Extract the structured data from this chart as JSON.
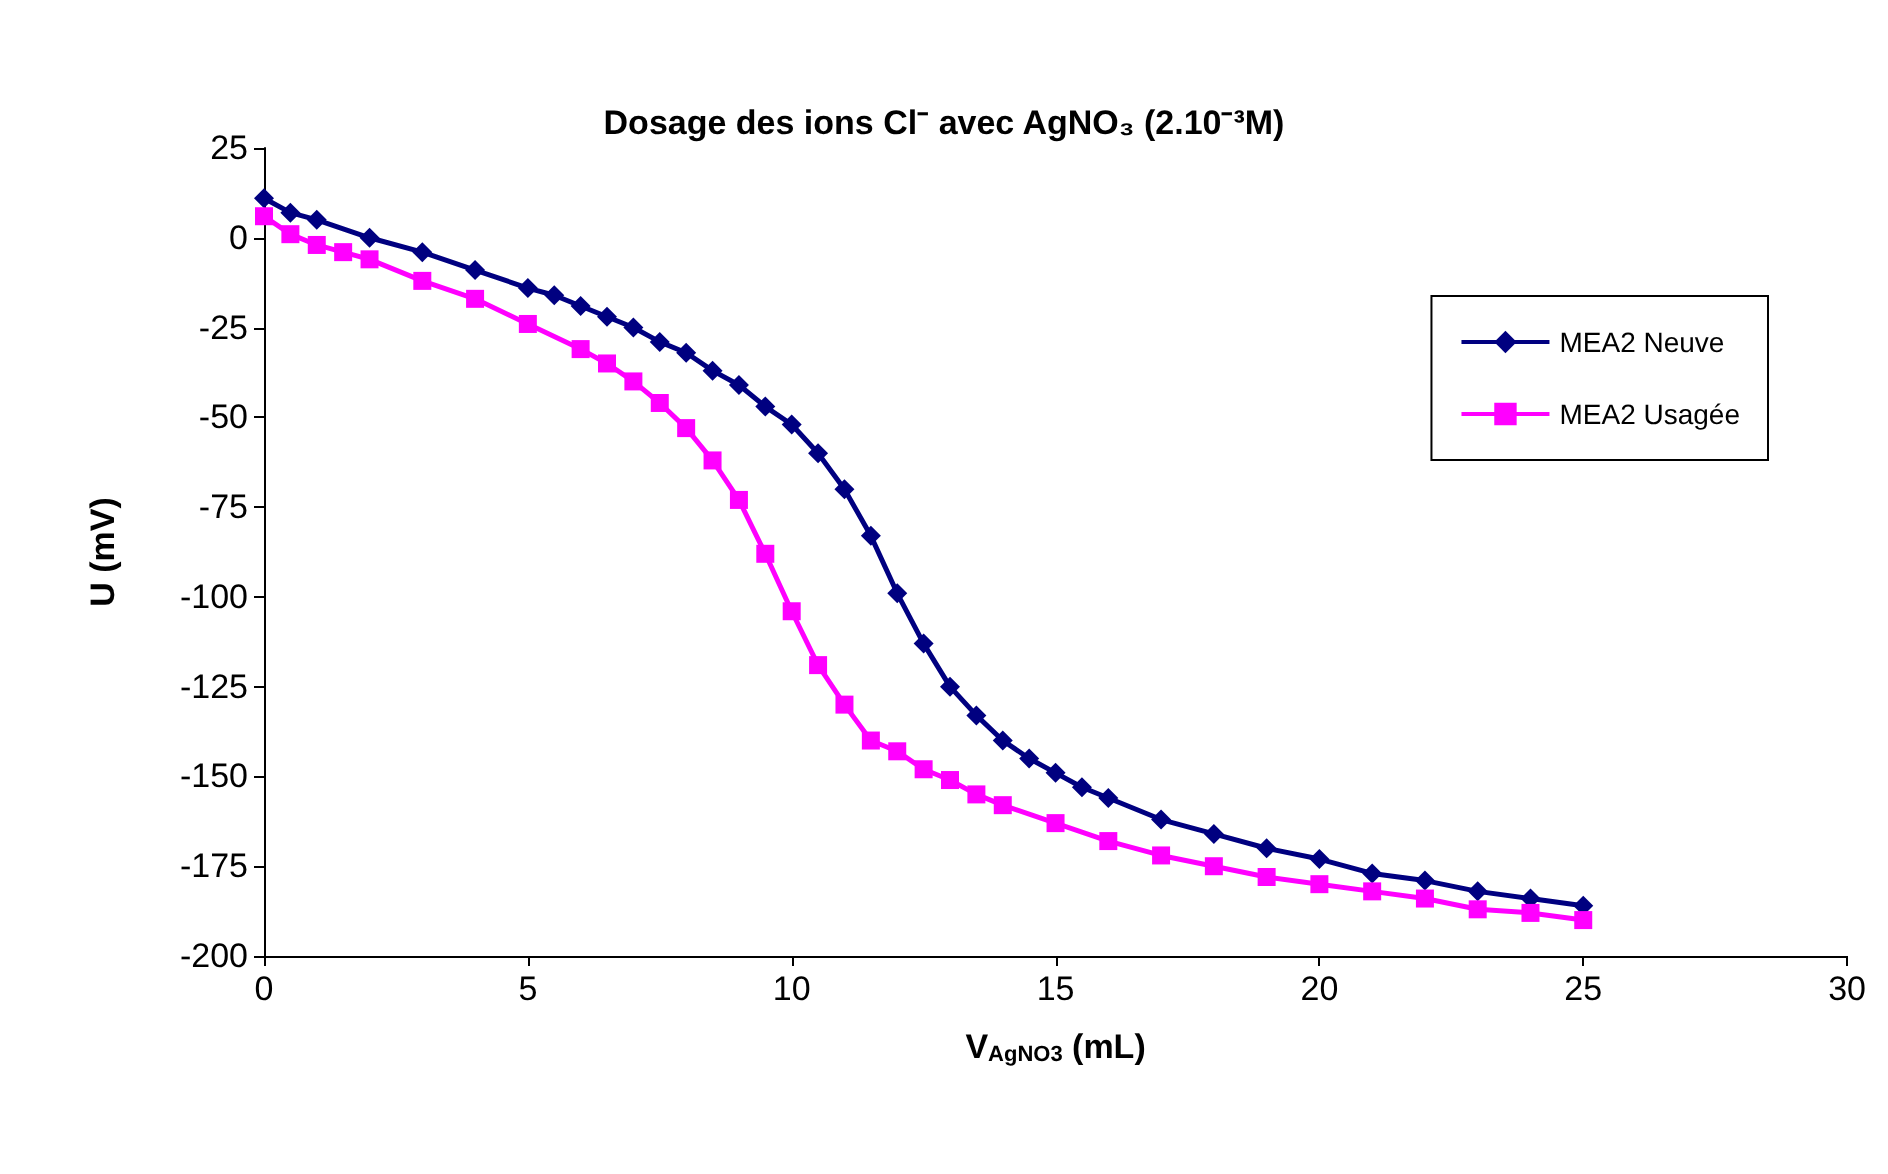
{
  "chart_data": {
    "type": "line",
    "title": "Dosage des ions Cl⁻ avec AgNO₃ (2.10⁻³M)",
    "xlabel": "V$_{AgNO3}$ (mL)",
    "ylabel": "U (mV)",
    "xlim": [
      0,
      30
    ],
    "xticks": [
      0,
      5,
      10,
      15,
      20,
      25,
      30
    ],
    "ylim": [
      -200,
      25
    ],
    "yticks": [
      -200,
      -175,
      -150,
      -125,
      -100,
      -75,
      -50,
      -25,
      0,
      25
    ],
    "grid": false,
    "legend": "right",
    "series": [
      {
        "name": "MEA2 Neuve",
        "color": "#000080",
        "marker": "diamond",
        "x": [
          0,
          0.5,
          1,
          2,
          3,
          4,
          5,
          5.5,
          6,
          6.5,
          7,
          7.5,
          8,
          8.5,
          9,
          9.5,
          10,
          10.5,
          11,
          11.5,
          12,
          12.5,
          13,
          13.5,
          14,
          14.5,
          15,
          15.5,
          16,
          17,
          18,
          19,
          20,
          21,
          22,
          23,
          24,
          25
        ],
        "values": [
          11,
          7,
          5,
          0,
          -4,
          -9,
          -14,
          -16,
          -19,
          -22,
          -25,
          -29,
          -32,
          -37,
          -41,
          -47,
          -52,
          -60,
          -70,
          -83,
          -99,
          -113,
          -125,
          -133,
          -140,
          -145,
          -149,
          -153,
          -156,
          -162,
          -166,
          -170,
          -173,
          -177,
          -179,
          -182,
          -184,
          -186
        ]
      },
      {
        "name": "MEA2 Usagée",
        "color": "#ff00ff",
        "marker": "square",
        "x": [
          0,
          0.5,
          1,
          1.5,
          2,
          3,
          4,
          5,
          6,
          6.5,
          7,
          7.5,
          8,
          8.5,
          9,
          9.5,
          10,
          10.5,
          11,
          11.5,
          12,
          12.5,
          13,
          13.5,
          14,
          15,
          16,
          17,
          18,
          19,
          20,
          21,
          22,
          23,
          24,
          25
        ],
        "values": [
          6,
          1,
          -2,
          -4,
          -6,
          -12,
          -17,
          -24,
          -31,
          -35,
          -40,
          -46,
          -53,
          -62,
          -73,
          -88,
          -104,
          -119,
          -130,
          -140,
          -143,
          -148,
          -151,
          -155,
          -158,
          -163,
          -168,
          -172,
          -175,
          -178,
          -180,
          -182,
          -184,
          -187,
          -188,
          -190
        ]
      }
    ]
  }
}
